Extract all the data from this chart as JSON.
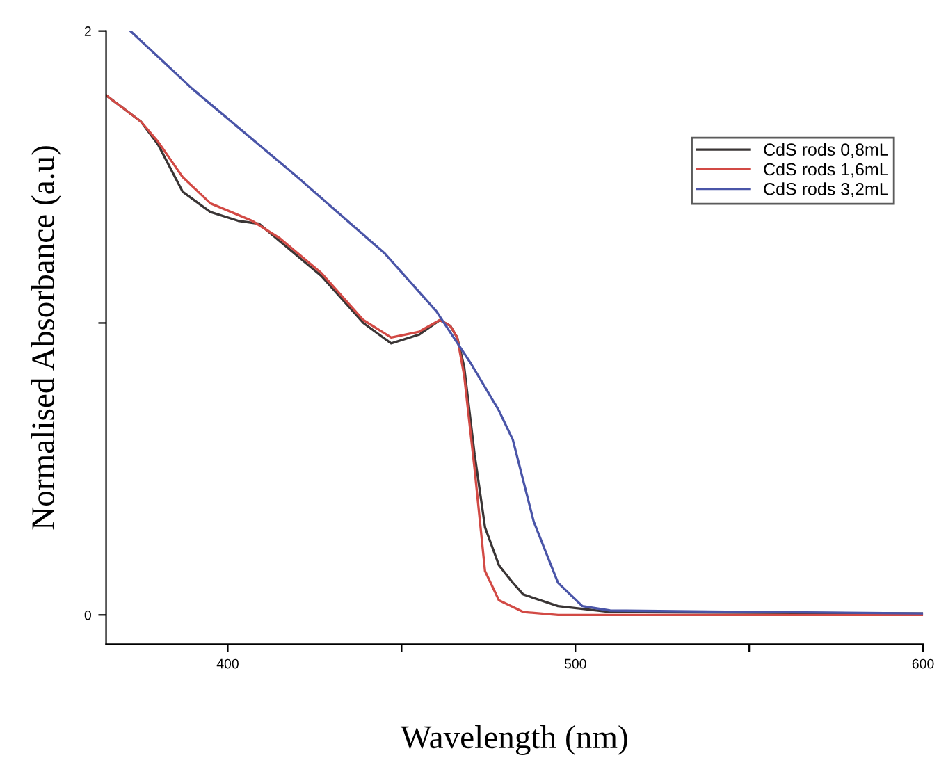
{
  "chart_data": {
    "type": "line",
    "xlabel": "Wavelength (nm)",
    "ylabel": "Normalised Absorbance (a.u)",
    "xlim": [
      365,
      600
    ],
    "xticks": [
      400,
      {
        "value": 450,
        "label": null
      },
      500,
      {
        "value": 550,
        "label": null
      },
      600
    ],
    "ylim": [
      -0.1,
      2
    ],
    "yticks": [
      0,
      {
        "value": 1,
        "label": null
      },
      2
    ],
    "grid": false,
    "legend": "top right",
    "marker": "none",
    "line_style": "solid",
    "series": [
      {
        "name": "CdS rods 0,8mL",
        "color": "#3a3535",
        "x": [
          365,
          375,
          380,
          387,
          395,
          403,
          409,
          415,
          427,
          439,
          447,
          455,
          461,
          464,
          466,
          468,
          471,
          474,
          478,
          482,
          485,
          495,
          510,
          600
        ],
        "values": [
          1.78,
          1.69,
          1.61,
          1.45,
          1.38,
          1.35,
          1.34,
          1.28,
          1.16,
          1.0,
          0.93,
          0.96,
          1.01,
          0.99,
          0.95,
          0.85,
          0.55,
          0.3,
          0.17,
          0.11,
          0.07,
          0.03,
          0.01,
          0.005
        ]
      },
      {
        "name": "CdS rods 1,6mL",
        "color": "#d24a45",
        "x": [
          365,
          375,
          380,
          387,
          395,
          403,
          407,
          415,
          427,
          439,
          447,
          455,
          461,
          464,
          466,
          468,
          471,
          474,
          478,
          485,
          495,
          600
        ],
        "values": [
          1.78,
          1.69,
          1.62,
          1.5,
          1.41,
          1.37,
          1.35,
          1.29,
          1.17,
          1.01,
          0.95,
          0.97,
          1.01,
          0.99,
          0.95,
          0.82,
          0.5,
          0.15,
          0.05,
          0.01,
          0.0,
          0.0
        ]
      },
      {
        "name": "CdS rods 3,2mL",
        "color": "#4a55a8",
        "x": [
          372,
          390,
          420,
          445,
          460,
          470,
          478,
          482,
          488,
          495,
          502,
          510,
          600
        ],
        "values": [
          2.0,
          1.8,
          1.5,
          1.24,
          1.04,
          0.86,
          0.7,
          0.6,
          0.32,
          0.11,
          0.03,
          0.015,
          0.005
        ]
      }
    ]
  }
}
